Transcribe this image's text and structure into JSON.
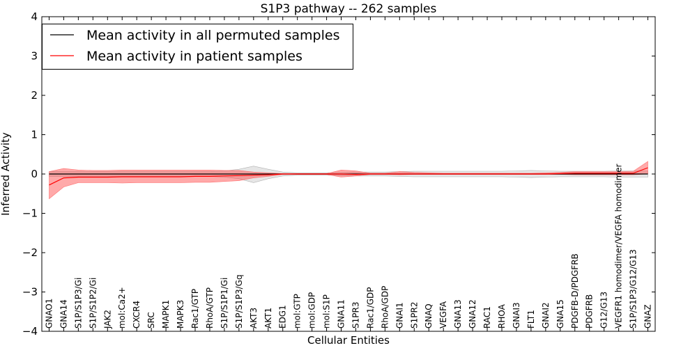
{
  "chart_data": {
    "type": "line",
    "title": "S1P3 pathway -- 262 samples",
    "xlabel": "Cellular Entities",
    "ylabel": "Inferred Activity",
    "ylim": [
      -4,
      4
    ],
    "yticks": [
      -4,
      -3,
      -2,
      -1,
      0,
      1,
      2,
      3,
      4
    ],
    "ytick_labels": [
      "−4",
      "−3",
      "−2",
      "−1",
      "0",
      "1",
      "2",
      "3",
      "4"
    ],
    "grid": false,
    "legend_position": "top-left",
    "categories": [
      "GNAO1",
      "GNA14",
      "S1P/S1P3/Gi",
      "S1P/S1P2/Gi",
      "JAK2",
      "mol:Ca2+",
      "CXCR4",
      "SRC",
      "MAPK1",
      "MAPK3",
      "Rac1/GTP",
      "RhoA/GTP",
      "S1P/S1P1/Gi",
      "S1P/S1P3/Gq",
      "AKT3",
      "AKT1",
      "EDG1",
      "mol:GTP",
      "mol:GDP",
      "mol:S1P",
      "GNA11",
      "S1PR3",
      "Rac1/GDP",
      "RhoA/GDP",
      "GNAI1",
      "S1PR2",
      "GNAQ",
      "VEGFA",
      "GNA13",
      "GNA12",
      "RAC1",
      "RHOA",
      "GNAI3",
      "FLT1",
      "GNAI2",
      "GNA15",
      "PDGFB-D/PDGFRB",
      "PDGFRB",
      "G12/G13",
      "VEGFR1 homodimer/VEGFA homodimer",
      "S1P/S1P3/G12/G13",
      "GNAZ"
    ],
    "series": [
      {
        "name": "Mean activity in all permuted samples",
        "color": "#000000",
        "values": [
          0.0,
          0.0,
          0.0,
          0.0,
          0.0,
          0.0,
          0.0,
          0.0,
          0.0,
          0.0,
          0.0,
          0.0,
          0.0,
          0.0,
          0.0,
          0.0,
          0.0,
          0.0,
          0.0,
          0.0,
          0.0,
          0.0,
          0.0,
          0.0,
          0.0,
          0.0,
          0.0,
          0.0,
          0.0,
          0.0,
          0.0,
          0.0,
          0.0,
          0.0,
          0.0,
          0.0,
          0.0,
          0.0,
          0.0,
          0.0,
          0.0,
          0.0
        ],
        "band_lower": [
          -0.06,
          -0.06,
          -0.06,
          -0.06,
          -0.06,
          -0.06,
          -0.06,
          -0.06,
          -0.06,
          -0.06,
          -0.06,
          -0.06,
          -0.08,
          -0.12,
          -0.22,
          -0.12,
          -0.05,
          -0.03,
          -0.03,
          -0.03,
          -0.04,
          -0.05,
          -0.05,
          -0.05,
          -0.06,
          -0.07,
          -0.07,
          -0.07,
          -0.07,
          -0.07,
          -0.07,
          -0.07,
          -0.08,
          -0.09,
          -0.08,
          -0.07,
          -0.07,
          -0.07,
          -0.07,
          -0.08,
          -0.08,
          -0.08
        ],
        "band_upper": [
          0.06,
          0.06,
          0.06,
          0.06,
          0.06,
          0.06,
          0.06,
          0.06,
          0.06,
          0.06,
          0.06,
          0.06,
          0.08,
          0.12,
          0.2,
          0.12,
          0.05,
          0.03,
          0.03,
          0.03,
          0.04,
          0.05,
          0.05,
          0.05,
          0.06,
          0.07,
          0.07,
          0.07,
          0.07,
          0.07,
          0.07,
          0.07,
          0.08,
          0.09,
          0.08,
          0.07,
          0.07,
          0.07,
          0.07,
          0.08,
          0.08,
          0.08
        ]
      },
      {
        "name": "Mean activity in patient samples",
        "color": "#ff0000",
        "values": [
          -0.28,
          -0.1,
          -0.08,
          -0.08,
          -0.08,
          -0.07,
          -0.07,
          -0.07,
          -0.07,
          -0.07,
          -0.06,
          -0.06,
          -0.05,
          -0.04,
          -0.03,
          -0.02,
          0.0,
          0.0,
          0.0,
          0.0,
          0.0,
          -0.01,
          0.0,
          0.0,
          0.0,
          0.0,
          0.0,
          0.0,
          0.0,
          0.0,
          0.0,
          0.0,
          0.0,
          0.0,
          0.0,
          0.01,
          0.02,
          0.02,
          0.02,
          0.02,
          0.02,
          0.16
        ],
        "band_lower": [
          -0.63,
          -0.33,
          -0.22,
          -0.22,
          -0.22,
          -0.23,
          -0.22,
          -0.22,
          -0.22,
          -0.22,
          -0.21,
          -0.21,
          -0.19,
          -0.17,
          -0.1,
          -0.06,
          -0.01,
          -0.01,
          -0.01,
          -0.01,
          -0.08,
          -0.05,
          -0.01,
          -0.01,
          -0.02,
          -0.01,
          -0.01,
          -0.01,
          -0.01,
          -0.01,
          -0.01,
          -0.01,
          -0.01,
          -0.01,
          -0.01,
          -0.01,
          -0.02,
          -0.02,
          -0.02,
          -0.02,
          -0.02,
          0.0
        ],
        "band_upper": [
          0.06,
          0.14,
          0.1,
          0.09,
          0.09,
          0.1,
          0.1,
          0.1,
          0.1,
          0.1,
          0.1,
          0.1,
          0.09,
          0.09,
          0.05,
          0.03,
          0.01,
          0.01,
          0.01,
          0.01,
          0.1,
          0.08,
          0.02,
          0.02,
          0.06,
          0.04,
          0.03,
          0.02,
          0.02,
          0.02,
          0.02,
          0.02,
          0.02,
          0.02,
          0.03,
          0.04,
          0.06,
          0.06,
          0.06,
          0.06,
          0.07,
          0.32
        ]
      }
    ]
  }
}
